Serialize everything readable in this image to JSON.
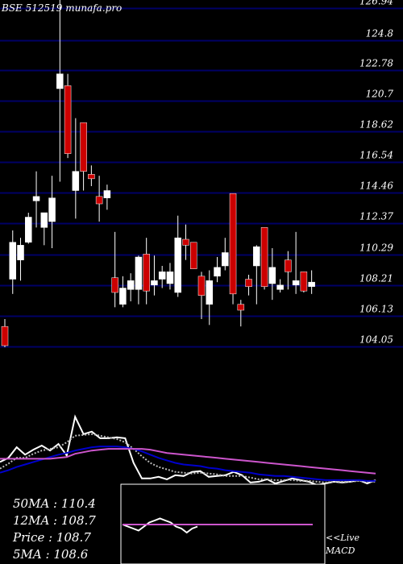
{
  "watermark": "BSE 512519 munafa.pro",
  "chart_data": [
    {
      "type": "candlestick",
      "ylim": [
        103.5,
        127.5
      ],
      "yticks": [
        126.94,
        124.8,
        122.78,
        120.7,
        118.62,
        116.54,
        114.46,
        112.37,
        110.29,
        108.21,
        106.13,
        104.05
      ],
      "colors": {
        "up": "#ffffff",
        "down": "#cc0000",
        "grid": "#000066",
        "background": "#000000"
      },
      "candles": [
        {
          "o": 105.4,
          "h": 105.9,
          "l": 104.0,
          "c": 104.1
        },
        {
          "o": 108.6,
          "h": 111.9,
          "l": 107.6,
          "c": 111.1
        },
        {
          "o": 109.9,
          "h": 111.4,
          "l": 108.5,
          "c": 110.9
        },
        {
          "o": 111.1,
          "h": 113.1,
          "l": 111.0,
          "c": 112.8
        },
        {
          "o": 113.9,
          "h": 115.9,
          "l": 112.1,
          "c": 114.2
        },
        {
          "o": 112.1,
          "h": 113.0,
          "l": 110.9,
          "c": 113.1
        },
        {
          "o": 112.5,
          "h": 115.6,
          "l": 110.7,
          "c": 114.1
        },
        {
          "o": 121.5,
          "h": 128.0,
          "l": 115.2,
          "c": 122.5
        },
        {
          "o": 121.7,
          "h": 122.5,
          "l": 116.8,
          "c": 117.1
        },
        {
          "o": 114.6,
          "h": 119.5,
          "l": 112.7,
          "c": 115.9
        },
        {
          "o": 119.2,
          "h": 119.2,
          "l": 114.6,
          "c": 115.9
        },
        {
          "o": 115.7,
          "h": 116.3,
          "l": 114.9,
          "c": 115.4
        },
        {
          "o": 114.2,
          "h": 115.6,
          "l": 112.5,
          "c": 113.7
        },
        {
          "o": 114.1,
          "h": 115.0,
          "l": 113.3,
          "c": 114.6
        },
        {
          "o": 108.7,
          "h": 111.8,
          "l": 106.7,
          "c": 107.7
        },
        {
          "o": 106.9,
          "h": 108.8,
          "l": 106.7,
          "c": 108.0
        },
        {
          "o": 107.9,
          "h": 109.0,
          "l": 107.1,
          "c": 108.5
        },
        {
          "o": 107.9,
          "h": 110.2,
          "l": 106.9,
          "c": 110.1
        },
        {
          "o": 110.3,
          "h": 111.4,
          "l": 106.9,
          "c": 107.8
        },
        {
          "o": 108.2,
          "h": 110.2,
          "l": 107.5,
          "c": 108.5
        },
        {
          "o": 108.6,
          "h": 109.5,
          "l": 108.0,
          "c": 109.1
        },
        {
          "o": 108.3,
          "h": 109.7,
          "l": 107.9,
          "c": 109.1
        },
        {
          "o": 107.7,
          "h": 112.9,
          "l": 107.4,
          "c": 111.4
        },
        {
          "o": 111.3,
          "h": 112.3,
          "l": 109.9,
          "c": 110.9
        },
        {
          "o": 111.1,
          "h": 111.1,
          "l": 109.3,
          "c": 109.3
        },
        {
          "o": 108.8,
          "h": 109.1,
          "l": 105.9,
          "c": 107.5
        },
        {
          "o": 106.9,
          "h": 109.2,
          "l": 105.5,
          "c": 108.5
        },
        {
          "o": 108.8,
          "h": 110.1,
          "l": 108.4,
          "c": 109.4
        },
        {
          "o": 109.5,
          "h": 111.4,
          "l": 109.2,
          "c": 110.4
        },
        {
          "o": 114.4,
          "h": 114.4,
          "l": 106.9,
          "c": 107.6
        },
        {
          "o": 106.9,
          "h": 107.2,
          "l": 105.4,
          "c": 106.5
        },
        {
          "o": 108.6,
          "h": 108.9,
          "l": 107.5,
          "c": 108.1
        },
        {
          "o": 109.5,
          "h": 110.9,
          "l": 106.9,
          "c": 110.8
        },
        {
          "o": 112.1,
          "h": 112.1,
          "l": 107.9,
          "c": 108.1
        },
        {
          "o": 108.3,
          "h": 110.7,
          "l": 107.2,
          "c": 109.4
        },
        {
          "o": 107.9,
          "h": 108.6,
          "l": 107.7,
          "c": 108.2
        },
        {
          "o": 109.9,
          "h": 110.5,
          "l": 107.9,
          "c": 109.1
        },
        {
          "o": 108.2,
          "h": 111.8,
          "l": 107.6,
          "c": 108.5
        },
        {
          "o": 109.1,
          "h": 109.1,
          "l": 107.7,
          "c": 107.8
        },
        {
          "o": 108.1,
          "h": 109.2,
          "l": 107.6,
          "c": 108.4
        }
      ]
    },
    {
      "type": "line",
      "indicator": "moving-averages",
      "ylim": [
        0,
        100
      ],
      "series": [
        {
          "color": "#ffffff",
          "values": [
            28,
            33,
            46,
            37,
            43,
            48,
            42,
            50,
            36,
            83,
            62,
            65,
            57,
            57,
            58,
            57,
            27,
            8,
            8,
            10,
            7,
            12,
            11,
            16,
            17,
            10,
            11,
            12,
            16,
            12,
            3,
            4,
            7,
            2,
            5,
            8,
            6,
            4,
            0,
            2,
            4,
            3,
            4,
            6,
            2,
            6
          ]
        },
        {
          "color": "#bbbbbb",
          "values": [
            20,
            26,
            33,
            33,
            38,
            42,
            44,
            46,
            52,
            60,
            61,
            62,
            60,
            58,
            56,
            52,
            44,
            35,
            27,
            22,
            19,
            16,
            15,
            14,
            15,
            14,
            13,
            11,
            11,
            11,
            9,
            7,
            7,
            6,
            6,
            6,
            5,
            5,
            4,
            3,
            4,
            4,
            4,
            5,
            4,
            4
          ]
        },
        {
          "color": "#0000cc",
          "values": [
            15,
            18,
            22,
            25,
            28,
            31,
            34,
            37,
            39,
            42,
            44,
            46,
            47,
            47,
            47,
            46,
            44,
            41,
            37,
            33,
            30,
            27,
            25,
            24,
            23,
            21,
            20,
            18,
            17,
            16,
            15,
            13,
            12,
            11,
            11,
            10,
            9,
            8,
            7,
            6,
            6,
            6,
            6,
            6,
            5,
            5
          ]
        },
        {
          "color": "#cc55cc",
          "values": [
            32,
            32,
            32,
            32,
            32,
            32,
            32,
            33,
            34,
            38,
            40,
            42,
            43,
            44,
            44,
            44,
            44,
            44,
            43,
            41,
            39,
            38,
            37,
            36,
            35,
            34,
            33,
            32,
            31,
            30,
            29,
            28,
            27,
            26,
            25,
            24,
            23,
            22,
            21,
            20,
            19,
            18,
            17,
            16,
            15,
            14
          ]
        }
      ]
    },
    {
      "type": "line",
      "indicator": "MACD",
      "ylim": [
        -10,
        10
      ],
      "series": [
        {
          "color": "#ffffff",
          "values": [
            0,
            -1,
            -2,
            -3,
            -1,
            1,
            2,
            3,
            2,
            1,
            -1,
            -2,
            -4,
            -2,
            -1
          ]
        },
        {
          "color": "#cc55cc",
          "values": [
            0,
            0,
            0,
            0,
            0,
            0,
            0,
            0,
            0,
            0,
            0,
            0,
            0,
            0,
            0,
            0,
            0,
            0,
            0,
            0,
            0,
            0,
            0,
            0,
            0,
            0,
            0,
            0,
            0,
            0
          ]
        }
      ]
    }
  ],
  "info": {
    "ma50": "50MA : 110.4",
    "ma12": "12MA : 108.7",
    "price": "Price   : 108.7",
    "ma5": "5MA : 108.6"
  },
  "macd_label": {
    "live": "<<Live",
    "macd": "MACD"
  }
}
